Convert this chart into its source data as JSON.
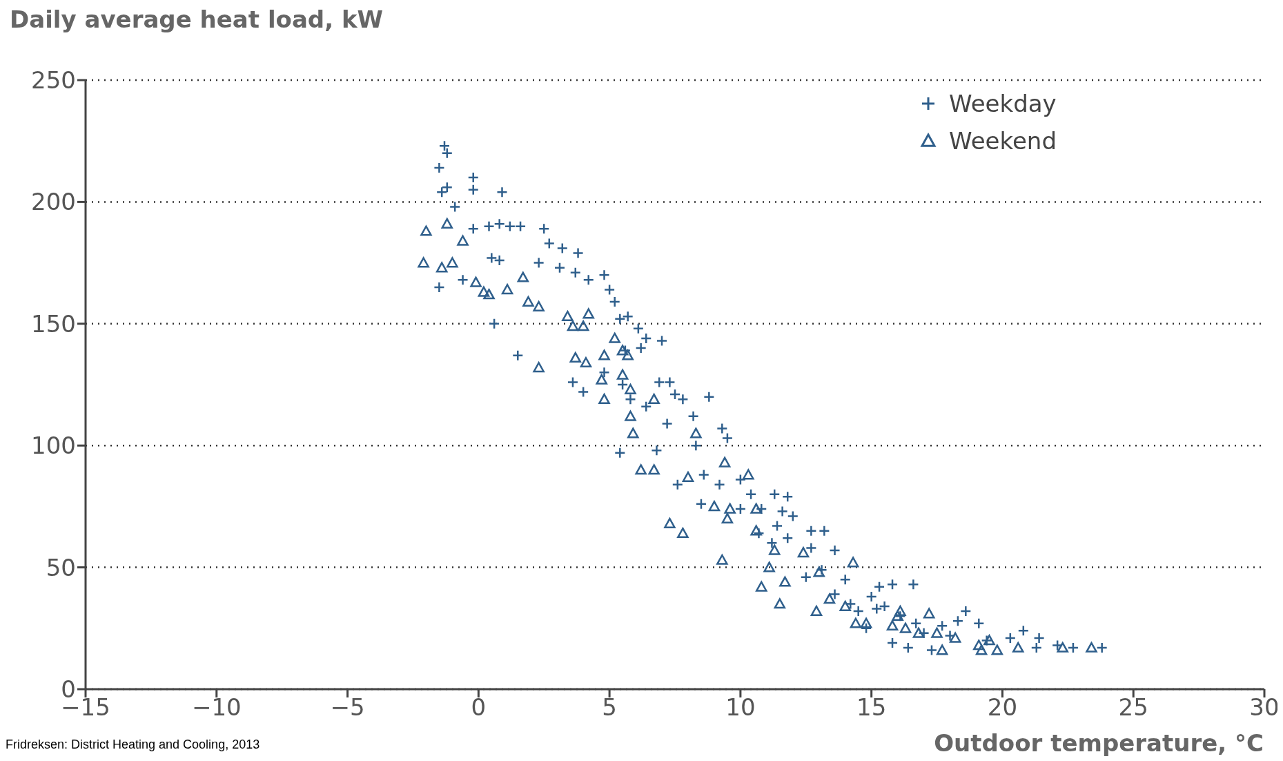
{
  "chart_data": {
    "type": "scatter",
    "ylabel": "Daily average heat load, kW",
    "xlabel": "Outdoor temperature, °C",
    "annotations": [
      "Fridreksen: District Heating and Cooling, 2013"
    ],
    "xlim": [
      -15,
      30
    ],
    "xticks": [
      {
        "value": -15,
        "label": "−15"
      },
      {
        "value": -10,
        "label": "−10"
      },
      {
        "value": -5,
        "label": "−5"
      },
      0,
      5,
      10,
      15,
      20,
      25,
      30
    ],
    "ylim": [
      0,
      250
    ],
    "yticks": [
      0,
      50,
      100,
      150,
      200,
      250
    ],
    "grid": "y",
    "legend": "top right",
    "series": [
      {
        "name": "Weekday",
        "color": "#2f5f8c",
        "marker": "cross",
        "x": [
          -1.3,
          -1.2,
          -1.5,
          -1.2,
          -1.4,
          -0.9,
          -0.2,
          -0.2,
          0.9,
          -1.5,
          -0.6,
          -0.2,
          0.4,
          0.8,
          1.2,
          1.6,
          0.6,
          0.5,
          0.8,
          1.5,
          2.5,
          2.7,
          3.2,
          3.8,
          2.3,
          3.1,
          3.7,
          4.2,
          4.8,
          5.0,
          3.6,
          4.0,
          5.2,
          5.4,
          5.7,
          6.1,
          6.4,
          7.0,
          6.2,
          5.6,
          4.8,
          5.5,
          5.8,
          6.4,
          6.9,
          7.3,
          7.5,
          7.8,
          8.8,
          8.2,
          7.2,
          6.8,
          5.4,
          8.3,
          9.3,
          9.5,
          8.6,
          7.6,
          8.5,
          9.2,
          10.0,
          10.4,
          10.0,
          10.8,
          11.3,
          11.8,
          11.6,
          12.0,
          11.4,
          10.7,
          11.2,
          11.8,
          12.7,
          13.2,
          12.7,
          13.6,
          13.1,
          12.5,
          14.0,
          13.6,
          14.2,
          14.5,
          15.0,
          15.3,
          15.8,
          16.6,
          15.5,
          16.1,
          16.7,
          15.8,
          16.4,
          17.3,
          17.7,
          18.3,
          18.6,
          19.1,
          19.4,
          20.3,
          20.8,
          21.4,
          21.3,
          22.1,
          22.7,
          23.8,
          17.0,
          18.0,
          15.2,
          14.8
        ],
        "values": [
          223,
          220,
          214,
          206,
          204,
          198,
          210,
          205,
          204,
          165,
          168,
          189,
          190,
          191,
          190,
          190,
          150,
          177,
          176,
          137,
          189,
          183,
          181,
          179,
          175,
          173,
          171,
          168,
          170,
          164,
          126,
          122,
          159,
          152,
          153,
          148,
          144,
          143,
          140,
          139,
          130,
          125,
          119,
          116,
          126,
          126,
          121,
          119,
          120,
          112,
          109,
          98,
          97,
          100,
          107,
          103,
          88,
          84,
          76,
          84,
          86,
          80,
          74,
          74,
          80,
          79,
          73,
          71,
          67,
          64,
          60,
          62,
          65,
          65,
          58,
          57,
          49,
          46,
          45,
          39,
          35,
          32,
          38,
          42,
          43,
          43,
          34,
          30,
          27,
          19,
          17,
          16,
          26,
          28,
          32,
          27,
          20,
          21,
          24,
          21,
          17,
          18,
          17,
          17,
          23,
          22,
          33,
          25
        ]
      },
      {
        "name": "Weekend",
        "color": "#2f5f8c",
        "marker": "triangle",
        "x": [
          -2.1,
          -2.0,
          -1.2,
          -1.4,
          -1.0,
          -0.6,
          -0.1,
          0.2,
          0.4,
          1.1,
          1.7,
          1.9,
          2.3,
          2.3,
          3.4,
          3.6,
          4.0,
          4.2,
          3.7,
          4.1,
          4.7,
          4.8,
          4.8,
          5.2,
          5.5,
          5.7,
          5.5,
          5.8,
          5.8,
          5.9,
          6.2,
          6.7,
          6.7,
          7.3,
          7.8,
          8.0,
          8.3,
          9.0,
          9.4,
          9.5,
          9.6,
          9.3,
          10.3,
          10.6,
          10.6,
          10.8,
          11.1,
          11.3,
          11.5,
          11.7,
          12.4,
          12.9,
          13.0,
          13.4,
          14.0,
          14.3,
          14.4,
          14.8,
          15.8,
          16.0,
          16.3,
          16.1,
          16.8,
          17.2,
          17.5,
          17.7,
          18.2,
          19.1,
          19.2,
          19.5,
          19.8,
          20.6,
          22.3,
          23.4
        ],
        "values": [
          175,
          188,
          191,
          173,
          175,
          184,
          167,
          163,
          162,
          164,
          169,
          159,
          157,
          132,
          153,
          149,
          149,
          154,
          136,
          134,
          127,
          137,
          119,
          144,
          139,
          137,
          129,
          123,
          112,
          105,
          90,
          90,
          119,
          68,
          64,
          87,
          105,
          75,
          93,
          70,
          74,
          53,
          88,
          74,
          65,
          42,
          50,
          57,
          35,
          44,
          56,
          32,
          48,
          37,
          34,
          52,
          27,
          27,
          26,
          30,
          25,
          32,
          23,
          31,
          23,
          16,
          21,
          18,
          16,
          20,
          16,
          17,
          17,
          17
        ]
      }
    ]
  }
}
